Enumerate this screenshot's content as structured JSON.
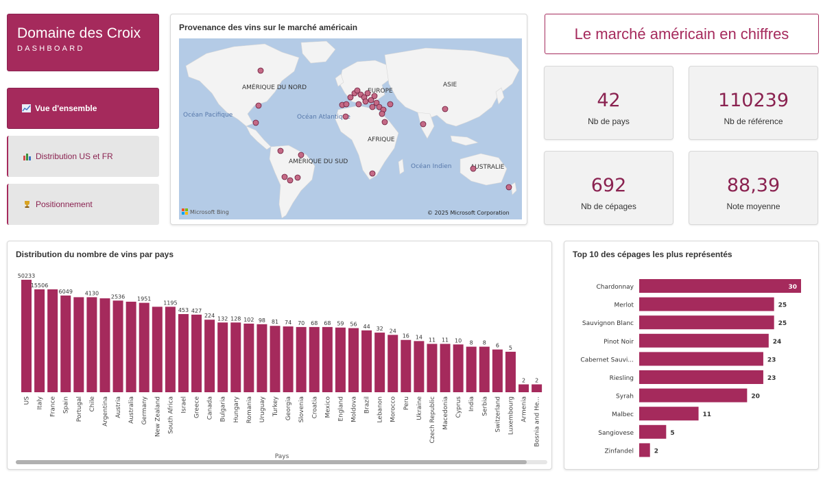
{
  "brand": {
    "title": "Domaine des Croix",
    "subtitle": "DASHBOARD"
  },
  "nav": [
    {
      "label": "Vue d'ensemble",
      "icon": "chart-icon",
      "active": true
    },
    {
      "label": "Distribution US et FR",
      "icon": "bar-chart-icon",
      "active": false
    },
    {
      "label": "Positionnement",
      "icon": "trophy-icon",
      "active": false
    }
  ],
  "map": {
    "title": "Provenance des vins sur le marché américain",
    "labels": {
      "north_america": "AMÉRIQUE DU NORD",
      "europe": "EUROPE",
      "asia": "ASIE",
      "africa": "AFRIQUE",
      "south_america": "AMÉRIQUE DU SUD",
      "australia": "AUSTRALIE",
      "pacific": "Océan Pacifique",
      "atlantic": "Océan Atlantique",
      "indian": "Océan Indien"
    },
    "bing": "Microsoft Bing",
    "copyright": "© 2025 Microsoft Corporation"
  },
  "hero": {
    "title": "Le marché américain en chiffres"
  },
  "kpis": [
    {
      "value": "42",
      "label": "Nb de pays"
    },
    {
      "value": "110239",
      "label": "Nb de référence"
    },
    {
      "value": "692",
      "label": "Nb de cépages"
    },
    {
      "value": "88,39",
      "label": "Note moyenne"
    }
  ],
  "colors": {
    "accent": "#a52a5c",
    "accent_dark": "#8a2250",
    "ocean": "#b4cbe6",
    "land": "#f2f2f2"
  },
  "country_chart": {
    "title": "Distribution du nombre de vins par pays",
    "xlabel": "Pays"
  },
  "grape_chart": {
    "title": "Top 10 des cépages les plus représentés"
  },
  "chart_data": [
    {
      "type": "bar",
      "title": "Distribution du nombre de vins par pays",
      "xlabel": "Pays",
      "categories": [
        "US",
        "Italy",
        "France",
        "Spain",
        "Portugal",
        "Chile",
        "Argentina",
        "Austria",
        "Australia",
        "Germany",
        "New Zealand",
        "South Africa",
        "Israel",
        "Greece",
        "Canada",
        "Bulgaria",
        "Hungary",
        "Romania",
        "Uruguay",
        "Turkey",
        "Georgia",
        "Slovenia",
        "Croatia",
        "Mexico",
        "England",
        "Moldova",
        "Brazil",
        "Lebanon",
        "Morocco",
        "Peru",
        "Ukraine",
        "Czech Republic",
        "Macedonia",
        "Cyprus",
        "India",
        "Serbia",
        "Switzerland",
        "Luxembourg",
        "Armenia",
        "Bosnia and He..."
      ],
      "values": [
        50233,
        15506,
        null,
        6049,
        null,
        4130,
        null,
        2536,
        null,
        1951,
        null,
        1195,
        453,
        427,
        224,
        132,
        128,
        102,
        98,
        81,
        74,
        70,
        68,
        68,
        59,
        56,
        44,
        32,
        24,
        16,
        14,
        11,
        11,
        10,
        8,
        8,
        6,
        5,
        2,
        2
      ],
      "data_labels": [
        "50233",
        "15506",
        "",
        "6049",
        "",
        "4130",
        "",
        "2536",
        "",
        "1951",
        "",
        "1195",
        "453",
        "427",
        "224",
        "132",
        "128",
        "102",
        "98",
        "81",
        "74",
        "70",
        "68",
        "68",
        "59",
        "56",
        "44",
        "32",
        "24",
        "16",
        "14",
        "11",
        "11",
        "10",
        "8",
        "8",
        "6",
        "5",
        "2",
        "2"
      ],
      "bar_heights_rank": [
        1.0,
        0.915,
        0.915,
        0.86,
        0.845,
        0.845,
        0.835,
        0.815,
        0.805,
        0.795,
        0.76,
        0.76,
        0.695,
        0.69,
        0.645,
        0.62,
        0.62,
        0.61,
        0.605,
        0.59,
        0.585,
        0.58,
        0.58,
        0.58,
        0.575,
        0.57,
        0.55,
        0.53,
        0.51,
        0.465,
        0.455,
        0.43,
        0.43,
        0.425,
        0.405,
        0.405,
        0.38,
        0.36,
        0.07,
        0.07
      ],
      "ylim": [
        0,
        1
      ]
    },
    {
      "type": "bar",
      "orientation": "horizontal",
      "title": "Top 10 des cépages les plus représentés",
      "categories": [
        "Chardonnay",
        "Merlot",
        "Sauvignon Blanc",
        "Pinot Noir",
        "Cabernet Sauvi...",
        "Riesling",
        "Syrah",
        "Malbec",
        "Sangiovese",
        "Zinfandel"
      ],
      "values": [
        30,
        25,
        25,
        24,
        23,
        23,
        20,
        11,
        5,
        2
      ],
      "xlim": [
        0,
        30
      ]
    }
  ]
}
